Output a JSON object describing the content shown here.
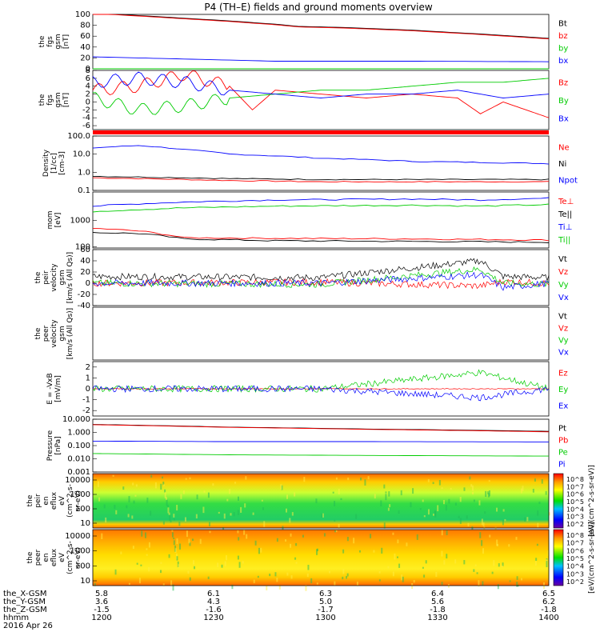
{
  "title": "P4 (TH–E) fields and ground moments overview",
  "colors": {
    "black": "#000000",
    "red": "#ff0000",
    "green": "#00cc00",
    "blue": "#0000ff"
  },
  "chart_data": [
    {
      "type": "line",
      "ylabel": [
        "the",
        "fgs",
        "gsm",
        "[nT]"
      ],
      "yticks": [
        "100",
        "80",
        "60",
        "40",
        "20",
        "0"
      ],
      "ylim": [
        0,
        100
      ],
      "legend": [
        "Bt",
        "bz",
        "by",
        "bx"
      ],
      "series": [
        {
          "name": "Bt",
          "x": [
            0,
            0.3,
            0.4,
            0.45,
            0.55,
            0.7,
            0.85,
            1.0
          ],
          "y": [
            103,
            88,
            82,
            78,
            76,
            71,
            64,
            56
          ]
        },
        {
          "name": "bz",
          "x": [
            0,
            0.3,
            0.4,
            0.45,
            0.55,
            0.7,
            0.85,
            1.0
          ],
          "y": [
            102,
            87,
            81,
            77,
            75,
            70,
            63,
            55
          ]
        },
        {
          "name": "by",
          "x": [
            0,
            1.0
          ],
          "y": [
            0,
            0
          ]
        },
        {
          "name": "bx",
          "x": [
            0,
            0.2,
            0.4,
            0.7,
            1.0
          ],
          "y": [
            22,
            18,
            14,
            14,
            13
          ]
        }
      ]
    },
    {
      "type": "line",
      "ylabel": [
        "the",
        "fgs",
        "gsm",
        "[nT]"
      ],
      "yticks": [
        "8",
        "6",
        "4",
        "2",
        "0",
        "-2",
        "-4",
        "-6"
      ],
      "ylim": [
        -7,
        8
      ],
      "legend": [
        "Bz",
        "By",
        "Bx"
      ],
      "series": [
        {
          "name": "Bz",
          "x": [
            0,
            0.1,
            0.2,
            0.3,
            0.35,
            0.4,
            0.5,
            0.6,
            0.7,
            0.8,
            0.85,
            0.9,
            1.0
          ],
          "y": [
            3,
            4,
            7,
            4,
            -2,
            3,
            2,
            1,
            2,
            1,
            -3,
            0,
            -4
          ]
        },
        {
          "name": "By",
          "x": [
            0,
            0.1,
            0.2,
            0.3,
            0.4,
            0.5,
            0.6,
            0.7,
            0.8,
            0.9,
            1.0
          ],
          "y": [
            1,
            -2,
            -1,
            1,
            2,
            3,
            3,
            4,
            5,
            5,
            6
          ]
        },
        {
          "name": "Bx",
          "x": [
            0,
            0.1,
            0.2,
            0.3,
            0.4,
            0.5,
            0.6,
            0.7,
            0.8,
            0.9,
            1.0
          ],
          "y": [
            5,
            6,
            5,
            3,
            2,
            1,
            2,
            2,
            3,
            1,
            2
          ]
        }
      ]
    },
    {
      "type": "line",
      "ylabel": [
        "Density",
        "[1/cc]",
        "[cm-3]"
      ],
      "yticks": [
        "100.0",
        "10.0",
        "1.0",
        "0.1"
      ],
      "ylim": [
        0.1,
        100
      ],
      "scale": "log",
      "legend": [
        "Ne",
        "Ni",
        "Npot"
      ],
      "series": [
        {
          "name": "Ne",
          "x": [
            0,
            0.3,
            0.5,
            0.7,
            1.0
          ],
          "y": [
            0.5,
            0.35,
            0.3,
            0.3,
            0.3
          ]
        },
        {
          "name": "Ni",
          "x": [
            0,
            0.1,
            0.2,
            0.3,
            0.5,
            0.7,
            0.85,
            1.0
          ],
          "y": [
            22,
            30,
            18,
            10,
            6,
            4,
            3.5,
            3
          ]
        },
        {
          "name": "Npot",
          "x": [
            0,
            0.3,
            0.5,
            0.7,
            1.0
          ],
          "y": [
            0.6,
            0.45,
            0.4,
            0.4,
            0.4
          ]
        }
      ]
    },
    {
      "type": "line",
      "ylabel": [
        "mom",
        "[eV]"
      ],
      "yticks": [
        "1000",
        "100"
      ],
      "ylim": [
        90,
        12000
      ],
      "scale": "log",
      "legend": [
        "Te⊥",
        "Te||",
        "Ti⊥",
        "Ti||"
      ],
      "series": [
        {
          "name": "Te⊥",
          "x": [
            0,
            0.1,
            0.2,
            0.4,
            0.7,
            1.0
          ],
          "y": [
            500,
            400,
            220,
            210,
            200,
            180
          ]
        },
        {
          "name": "Te||",
          "x": [
            0,
            0.1,
            0.2,
            0.4,
            0.7,
            1.0
          ],
          "y": [
            350,
            320,
            200,
            170,
            160,
            150
          ]
        },
        {
          "name": "Ti⊥",
          "x": [
            0,
            0.2,
            0.4,
            0.7,
            0.85,
            1.0
          ],
          "y": [
            3500,
            5000,
            6000,
            6500,
            6000,
            7000
          ]
        },
        {
          "name": "Ti||",
          "x": [
            0,
            0.2,
            0.4,
            0.7,
            0.85,
            1.0
          ],
          "y": [
            2200,
            3000,
            3500,
            3800,
            3500,
            4000
          ]
        }
      ]
    },
    {
      "type": "line",
      "ylabel": [
        "the",
        "peir",
        "velocity",
        "gsm",
        "[km/s (All Qs)]"
      ],
      "yticks": [
        "60",
        "40",
        "20",
        "0",
        "-20",
        "-40"
      ],
      "ylim": [
        -40,
        60
      ],
      "legend": [
        "Vt",
        "Vz",
        "Vy",
        "Vx"
      ],
      "series": [
        {
          "name": "Vt",
          "x": [
            0,
            0.5,
            0.85,
            0.9,
            1.0
          ],
          "y": [
            12,
            10,
            40,
            12,
            10
          ]
        },
        {
          "name": "Vz",
          "x": [
            0,
            0.5,
            0.85,
            0.9,
            1.0
          ],
          "y": [
            0,
            2,
            -5,
            3,
            0
          ]
        },
        {
          "name": "Vy",
          "x": [
            0,
            0.5,
            0.85,
            0.9,
            1.0
          ],
          "y": [
            0,
            -2,
            25,
            0,
            -2
          ]
        },
        {
          "name": "Vx",
          "x": [
            0,
            0.5,
            0.85,
            0.9,
            1.0
          ],
          "y": [
            0,
            0,
            15,
            -8,
            0
          ]
        }
      ]
    },
    {
      "type": "line",
      "ylabel": [
        "the",
        "peer",
        "velocity",
        "gsm",
        "[km/s (All Qs)]"
      ],
      "yticks": [],
      "legend": [
        "Vt",
        "Vz",
        "Vy",
        "Vx"
      ],
      "series": []
    },
    {
      "type": "line",
      "ylabel": [
        "E = -VxB",
        "[mV/m]"
      ],
      "yticks": [
        "2",
        "1",
        "0",
        "-1",
        "-2"
      ],
      "ylim": [
        -2.5,
        2.5
      ],
      "legend": [
        "Ez",
        "Ey",
        "Ex"
      ],
      "series": [
        {
          "name": "Ez",
          "x": [
            0,
            1.0
          ],
          "y": [
            0,
            0
          ]
        },
        {
          "name": "Ey",
          "x": [
            0,
            0.5,
            0.85,
            1.0
          ],
          "y": [
            0,
            0,
            1.5,
            0
          ]
        },
        {
          "name": "Ex",
          "x": [
            0,
            0.5,
            0.85,
            1.0
          ],
          "y": [
            0,
            0,
            -0.8,
            0
          ]
        }
      ]
    },
    {
      "type": "line",
      "ylabel": [
        "Pressure",
        "[nPa]"
      ],
      "yticks": [
        "10.000",
        "1.000",
        "0.100",
        "0.010",
        "0.001"
      ],
      "ylim": [
        0.001,
        10
      ],
      "scale": "log",
      "legend": [
        "Pt",
        "Pb",
        "Pe",
        "Pi"
      ],
      "series": [
        {
          "name": "Pt",
          "x": [
            0,
            0.3,
            0.6,
            1.0
          ],
          "y": [
            4,
            2.5,
            1.8,
            1.2
          ]
        },
        {
          "name": "Pb",
          "x": [
            0,
            0.3,
            0.6,
            1.0
          ],
          "y": [
            3.8,
            2.4,
            1.7,
            1.1
          ]
        },
        {
          "name": "Pe",
          "x": [
            0,
            0.3,
            0.6,
            1.0
          ],
          "y": [
            0.025,
            0.02,
            0.018,
            0.016
          ]
        },
        {
          "name": "Pi",
          "x": [
            0,
            0.3,
            0.6,
            1.0
          ],
          "y": [
            0.22,
            0.2,
            0.2,
            0.19
          ]
        }
      ]
    },
    {
      "type": "heatmap",
      "ylabel": [
        "the",
        "peir",
        "en",
        "eflux",
        "eV",
        "(cm^2-s-",
        "sr-eV)"
      ],
      "yticks": [
        "10000",
        "1000",
        "100",
        "10"
      ],
      "scale": "log",
      "colorbar": "[eV/(cm^2-s-sr-eV)]",
      "colorbar_ticks": [
        "10^8",
        "10^7",
        "10^6",
        "10^5",
        "10^4",
        "10^3",
        "10^2"
      ]
    },
    {
      "type": "heatmap",
      "ylabel": [
        "the",
        "peer",
        "en",
        "eflux",
        "eV",
        "(cm^2-s-",
        "sr-eV)"
      ],
      "yticks": [
        "10000",
        "1000",
        "100",
        "10"
      ],
      "scale": "log",
      "colorbar": "[eV/(cm^2-s-sr-eV)]",
      "colorbar_ticks": [
        "10^8",
        "10^7",
        "10^6",
        "10^5",
        "10^4",
        "10^3",
        "10^2"
      ]
    }
  ],
  "xaxis": {
    "rows": [
      {
        "label": "the_X-GSM",
        "values": [
          "5.8",
          "6.1",
          "6.3",
          "6.4",
          "6.5"
        ]
      },
      {
        "label": "the_Y-GSM",
        "values": [
          "3.6",
          "4.3",
          "5.0",
          "5.6",
          "6.2"
        ]
      },
      {
        "label": "the_Z-GSM",
        "values": [
          "-1.5",
          "-1.6",
          "-1.7",
          "-1.8",
          "-1.8"
        ]
      },
      {
        "label": "hhmm",
        "values": [
          "1200",
          "1230",
          "1300",
          "1330",
          "1400"
        ]
      }
    ],
    "date": "2016 Apr 26"
  }
}
